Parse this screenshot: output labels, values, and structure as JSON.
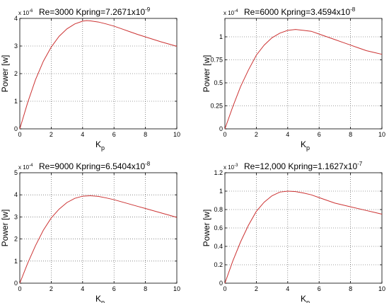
{
  "chart_data": [
    {
      "type": "line",
      "title": "Re=3000 Kpring=7.2671x10",
      "title_exp": "-9",
      "multiplier": "x 10",
      "multiplier_exp": "-6",
      "xlabel": "K",
      "xlabel_sub": "p",
      "ylabel": "Power [w]",
      "xlim": [
        0,
        10
      ],
      "ylim": [
        0,
        4
      ],
      "xticks": [
        "0",
        "2",
        "4",
        "6",
        "8",
        "10"
      ],
      "yticks": [
        "0",
        "1",
        "2",
        "3",
        "4"
      ],
      "grid": true,
      "line_color": "#cc3333",
      "x": [
        0,
        0.5,
        1,
        1.5,
        2,
        2.5,
        3,
        3.5,
        4,
        4.25,
        4.5,
        5,
        5.5,
        6,
        6.5,
        7,
        7.5,
        8,
        8.5,
        9,
        9.5,
        10
      ],
      "y": [
        0,
        0.95,
        1.78,
        2.45,
        2.96,
        3.35,
        3.62,
        3.8,
        3.9,
        3.92,
        3.91,
        3.87,
        3.8,
        3.72,
        3.62,
        3.52,
        3.42,
        3.33,
        3.24,
        3.15,
        3.07,
        2.99
      ]
    },
    {
      "type": "line",
      "title": "Re=6000 Kpring=3.4594x10",
      "title_exp": "-8",
      "multiplier": "x 10",
      "multiplier_exp": "-4",
      "xlabel": "K",
      "xlabel_sub": "p",
      "ylabel": "Power [w]",
      "xlim": [
        0,
        10
      ],
      "ylim": [
        0,
        1.2
      ],
      "xticks": [
        "0",
        "2",
        "4",
        "6",
        "8",
        "10"
      ],
      "yticks": [
        "0",
        "0.25",
        "0.5",
        "0.75",
        "1"
      ],
      "grid": true,
      "line_color": "#cc3333",
      "x": [
        0,
        0.5,
        1,
        1.5,
        2,
        2.5,
        3,
        3.5,
        4,
        4.5,
        5,
        5.5,
        6,
        6.5,
        7,
        7.5,
        8,
        8.5,
        9,
        9.5,
        10
      ],
      "y": [
        0,
        0.24,
        0.46,
        0.64,
        0.8,
        0.91,
        0.99,
        1.04,
        1.07,
        1.08,
        1.07,
        1.06,
        1.03,
        1.0,
        0.97,
        0.94,
        0.91,
        0.88,
        0.85,
        0.83,
        0.81
      ]
    },
    {
      "type": "line",
      "title": "Re=9000 Kpring=6.5404x10",
      "title_exp": "-8",
      "multiplier": "x 10",
      "multiplier_exp": "-4",
      "xlabel": "K",
      "xlabel_sub": "p",
      "ylabel": "Power [w]",
      "xlim": [
        0,
        10
      ],
      "ylim": [
        0,
        5
      ],
      "xticks": [
        "0",
        "2",
        "4",
        "6",
        "8",
        "10"
      ],
      "yticks": [
        "0",
        "1",
        "2",
        "3",
        "4",
        "5"
      ],
      "grid": true,
      "line_color": "#cc3333",
      "x": [
        0,
        0.5,
        1,
        1.5,
        2,
        2.5,
        3,
        3.5,
        4,
        4.5,
        5,
        5.5,
        6,
        6.5,
        7,
        7.5,
        8,
        8.5,
        9,
        9.5,
        10
      ],
      "y": [
        0,
        0.9,
        1.7,
        2.4,
        2.95,
        3.35,
        3.65,
        3.84,
        3.94,
        3.96,
        3.93,
        3.86,
        3.78,
        3.68,
        3.58,
        3.48,
        3.38,
        3.28,
        3.18,
        3.08,
        2.98
      ]
    },
    {
      "type": "line",
      "title": "Re=12,000 Kpring=1.1627x10",
      "title_exp": "-7",
      "multiplier": "x 10",
      "multiplier_exp": "-3",
      "xlabel": "K",
      "xlabel_sub": "p",
      "ylabel": "Power [w]",
      "xlim": [
        0,
        10
      ],
      "ylim": [
        0,
        1.2
      ],
      "xticks": [
        "0",
        "2",
        "4",
        "6",
        "8",
        "10"
      ],
      "yticks": [
        "0",
        "0.2",
        "0.4",
        "0.6",
        "0.8",
        "1",
        "1.2"
      ],
      "grid": true,
      "line_color": "#cc3333",
      "x": [
        0,
        0.5,
        1,
        1.5,
        2,
        2.5,
        3,
        3.5,
        4,
        4.5,
        5,
        5.5,
        6,
        6.5,
        7,
        7.5,
        8,
        8.5,
        9,
        9.5,
        10
      ],
      "y": [
        0,
        0.24,
        0.45,
        0.63,
        0.78,
        0.88,
        0.95,
        0.99,
        1.0,
        0.995,
        0.98,
        0.96,
        0.93,
        0.9,
        0.87,
        0.85,
        0.83,
        0.81,
        0.79,
        0.77,
        0.75
      ]
    }
  ]
}
